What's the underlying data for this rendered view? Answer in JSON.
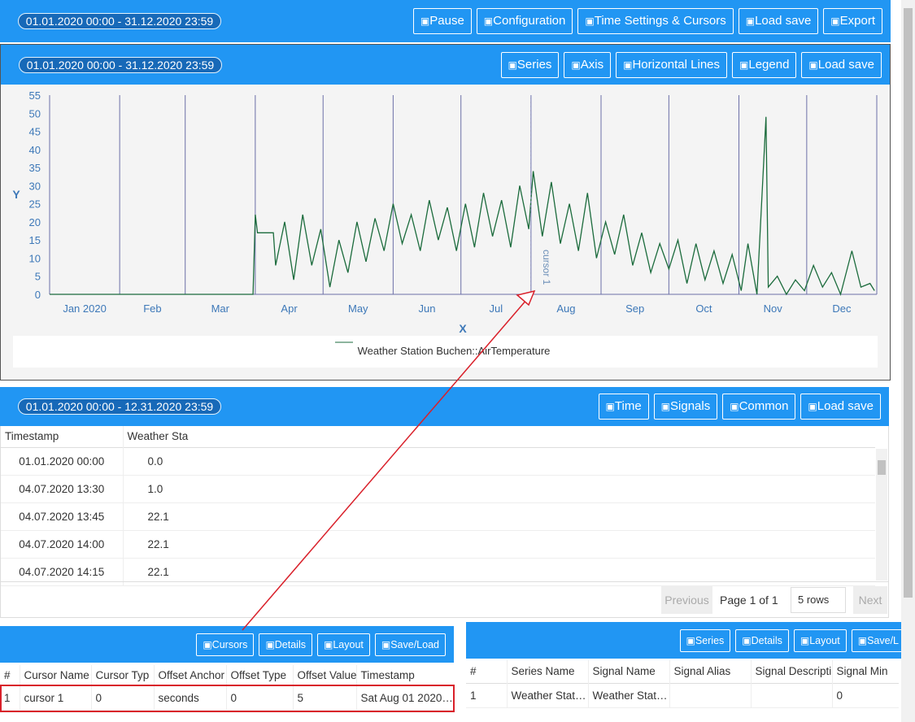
{
  "header": {
    "range": "01.01.2020 00:00 - 31.12.2020 23:59",
    "buttons": [
      "Pause",
      "Configuration",
      "Time Settings & Cursors",
      "Load save",
      "Export"
    ]
  },
  "chart_panel": {
    "range": "01.01.2020 00:00 - 31.12.2020 23:59",
    "buttons": [
      "Series",
      "Axis",
      "Horizontal Lines",
      "Legend",
      "Load save"
    ]
  },
  "chart_data": {
    "type": "line",
    "x_label": "X",
    "y_label": "Y",
    "xlim": [
      "2020-01-01",
      "2021-01-01"
    ],
    "xticks": [
      {
        "value": "2020-01-01",
        "label": "Jan 2020"
      },
      {
        "value": "2020-02-01",
        "label": "Feb"
      },
      {
        "value": "2020-03-01",
        "label": "Mar"
      },
      {
        "value": "2020-04-01",
        "label": "Apr"
      },
      {
        "value": "2020-05-01",
        "label": "May"
      },
      {
        "value": "2020-06-01",
        "label": "Jun"
      },
      {
        "value": "2020-07-01",
        "label": "Jul"
      },
      {
        "value": "2020-08-01",
        "label": "Aug"
      },
      {
        "value": "2020-09-01",
        "label": "Sep"
      },
      {
        "value": "2020-10-01",
        "label": "Oct"
      },
      {
        "value": "2020-11-01",
        "label": "Nov"
      },
      {
        "value": "2020-12-01",
        "label": "Dec"
      }
    ],
    "ylim": [
      0,
      55
    ],
    "yticks": [
      0,
      5,
      10,
      15,
      20,
      25,
      30,
      35,
      40,
      45,
      50,
      55
    ],
    "grid": true,
    "x": [
      "2020-01-01",
      "2020-03-31",
      "2020-04-01",
      "2020-04-02",
      "2020-04-09",
      "2020-04-10",
      "2020-04-14",
      "2020-04-18",
      "2020-04-22",
      "2020-04-26",
      "2020-04-30",
      "2020-05-04",
      "2020-05-08",
      "2020-05-12",
      "2020-05-16",
      "2020-05-20",
      "2020-05-24",
      "2020-05-28",
      "2020-06-01",
      "2020-06-05",
      "2020-06-09",
      "2020-06-13",
      "2020-06-17",
      "2020-06-21",
      "2020-06-25",
      "2020-06-29",
      "2020-07-03",
      "2020-07-07",
      "2020-07-11",
      "2020-07-15",
      "2020-07-19",
      "2020-07-23",
      "2020-07-27",
      "2020-07-31",
      "2020-08-02",
      "2020-08-06",
      "2020-08-10",
      "2020-08-14",
      "2020-08-18",
      "2020-08-22",
      "2020-08-26",
      "2020-08-30",
      "2020-09-03",
      "2020-09-07",
      "2020-09-11",
      "2020-09-15",
      "2020-09-19",
      "2020-09-23",
      "2020-09-27",
      "2020-10-01",
      "2020-10-05",
      "2020-10-09",
      "2020-10-13",
      "2020-10-17",
      "2020-10-21",
      "2020-10-25",
      "2020-10-29",
      "2020-11-02",
      "2020-11-05",
      "2020-11-09",
      "2020-11-13",
      "2020-11-14",
      "2020-11-18",
      "2020-11-22",
      "2020-11-26",
      "2020-11-30",
      "2020-12-04",
      "2020-12-08",
      "2020-12-12",
      "2020-12-16",
      "2020-12-21",
      "2020-12-25",
      "2020-12-29",
      "2020-12-31"
    ],
    "series": [
      {
        "name": "Weather Station Buchen::AirTemperature",
        "color": "#1b6b3c",
        "values": [
          0,
          0,
          22,
          17,
          17,
          8,
          20,
          4,
          22,
          8,
          18,
          2,
          15,
          6,
          20,
          9,
          21,
          12,
          25,
          14,
          22,
          12,
          26,
          15,
          24,
          12,
          25,
          13,
          28,
          16,
          26,
          13,
          30,
          18,
          34,
          16,
          31,
          14,
          25,
          12,
          28,
          10,
          20,
          11,
          22,
          8,
          17,
          6,
          14,
          7,
          15,
          3,
          14,
          4,
          12,
          3,
          11,
          1,
          14,
          0,
          49,
          2,
          5,
          0,
          4,
          1,
          8,
          2,
          6,
          0,
          12,
          2,
          3,
          1
        ]
      }
    ],
    "cursors": [
      {
        "label": "cursor 1",
        "x": "2020-08-01"
      }
    ]
  },
  "table_panel": {
    "range": "01.01.2020 00:00 - 12.31.2020 23:59",
    "buttons": [
      "Time",
      "Signals",
      "Common",
      "Load save"
    ],
    "columns": [
      "Timestamp",
      "Weather Sta"
    ],
    "rows": [
      [
        "01.01.2020 00:00",
        "0.0"
      ],
      [
        "04.07.2020 13:30",
        "1.0"
      ],
      [
        "04.07.2020 13:45",
        "22.1"
      ],
      [
        "04.07.2020 14:00",
        "22.1"
      ],
      [
        "04.07.2020 14:15",
        "22.1"
      ]
    ],
    "pagination": {
      "previous": "Previous",
      "page": "Page 1 of 1",
      "rows": "5 rows",
      "next": "Next"
    }
  },
  "cursor_panel": {
    "buttons": [
      "Cursors",
      "Details",
      "Layout",
      "Save/Load"
    ],
    "columns": [
      "#",
      "Cursor Name",
      "Cursor Typ",
      "Offset Anchor",
      "Offset Type",
      "Offset Value",
      "Timestamp"
    ],
    "rows": [
      [
        "1",
        "cursor 1",
        "0",
        "seconds",
        "0",
        "5",
        "Sat Aug 01 2020…"
      ]
    ]
  },
  "series_panel": {
    "buttons": [
      "Series",
      "Details",
      "Layout",
      "Save/L"
    ],
    "columns": [
      "#",
      "Series Name",
      "Signal Name",
      "Signal Alias",
      "Signal Descripti",
      "Signal Min"
    ],
    "rows": [
      [
        "1",
        "Weather Stat…",
        "Weather Stat…",
        null,
        null,
        "0"
      ]
    ]
  }
}
